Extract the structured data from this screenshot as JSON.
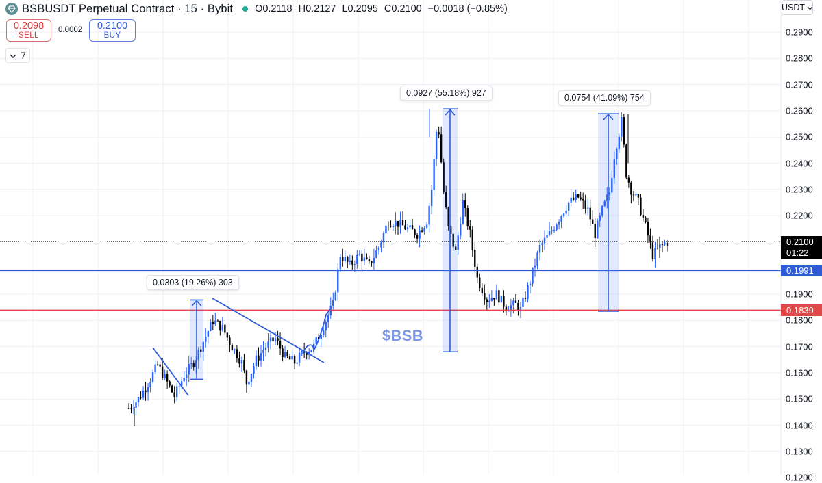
{
  "header": {
    "title": "BSBUSDT Perpetual Contract · 15 · Bybit",
    "open": "O0.2118",
    "high": "H0.2127",
    "low": "L0.2095",
    "close": "C0.2100",
    "change": "−0.0018 (−0.85%)"
  },
  "trade": {
    "sell_price": "0.2098",
    "sell_label": "SELL",
    "spread": "0.0002",
    "buy_price": "0.2100",
    "buy_label": "BUY"
  },
  "indicators_collapse": {
    "count": "7"
  },
  "axis": {
    "currency": "USDT"
  },
  "price_labels": {
    "current_price": "0.2100",
    "countdown": "01:22",
    "blue_level": "0.1991",
    "red_level": "0.1839"
  },
  "measurements": [
    {
      "text": "0.0303 (19.26%) 303"
    },
    {
      "text": "0.0927 (55.18%) 927"
    },
    {
      "text": "0.0754 (41.09%) 754"
    }
  ],
  "annotation": {
    "text": "$BSB"
  },
  "colors": {
    "up": "#2962ff",
    "down": "#000000",
    "blue_line": "#2f5bd6",
    "red_line": "#e04848",
    "price_label_bg": "#000000",
    "drawing": "#2f5bd6"
  },
  "chart_data": {
    "type": "candlestick",
    "symbol": "BSBUSDT",
    "timeframe": "15",
    "y_ticks": [
      "0.2900",
      "0.2800",
      "0.2700",
      "0.2600",
      "0.2500",
      "0.2400",
      "0.2300",
      "0.2200",
      "0.1900",
      "0.1800",
      "0.1700",
      "0.1600",
      "0.1500",
      "0.1400",
      "0.1300",
      "0.1200"
    ],
    "ylim": [
      0.1185,
      0.2975
    ],
    "horizontal_levels": [
      {
        "value": 0.1991,
        "color": "blue"
      },
      {
        "value": 0.1839,
        "color": "red"
      }
    ],
    "current_price": 0.21,
    "price_anchors": [
      [
        0,
        0.1465
      ],
      [
        4,
        0.15
      ],
      [
        8,
        0.156
      ],
      [
        12,
        0.163
      ],
      [
        15,
        0.158
      ],
      [
        19,
        0.151
      ],
      [
        23,
        0.159
      ],
      [
        27,
        0.164
      ],
      [
        31,
        0.172
      ],
      [
        35,
        0.18
      ],
      [
        39,
        0.177
      ],
      [
        43,
        0.17
      ],
      [
        47,
        0.164
      ],
      [
        49,
        0.156
      ],
      [
        53,
        0.165
      ],
      [
        57,
        0.17
      ],
      [
        61,
        0.173
      ],
      [
        65,
        0.166
      ],
      [
        69,
        0.164
      ],
      [
        73,
        0.168
      ],
      [
        77,
        0.17
      ],
      [
        81,
        0.178
      ],
      [
        85,
        0.186
      ],
      [
        88,
        0.205
      ],
      [
        92,
        0.201
      ],
      [
        96,
        0.205
      ],
      [
        100,
        0.201
      ],
      [
        104,
        0.208
      ],
      [
        108,
        0.218
      ],
      [
        112,
        0.217
      ],
      [
        116,
        0.215
      ],
      [
        120,
        0.213
      ],
      [
        124,
        0.218
      ],
      [
        126,
        0.23
      ],
      [
        128,
        0.252
      ],
      [
        129,
        0.252
      ],
      [
        131,
        0.229
      ],
      [
        133,
        0.215
      ],
      [
        136,
        0.206
      ],
      [
        139,
        0.225
      ],
      [
        142,
        0.213
      ],
      [
        145,
        0.196
      ],
      [
        149,
        0.188
      ],
      [
        153,
        0.19
      ],
      [
        157,
        0.185
      ],
      [
        161,
        0.186
      ],
      [
        163,
        0.184
      ],
      [
        167,
        0.195
      ],
      [
        171,
        0.208
      ],
      [
        175,
        0.213
      ],
      [
        179,
        0.219
      ],
      [
        183,
        0.225
      ],
      [
        187,
        0.227
      ],
      [
        191,
        0.222
      ],
      [
        194,
        0.213
      ],
      [
        197,
        0.222
      ],
      [
        200,
        0.229
      ],
      [
        202,
        0.243
      ],
      [
        205,
        0.256
      ],
      [
        207,
        0.236
      ],
      [
        209,
        0.23
      ],
      [
        212,
        0.225
      ],
      [
        215,
        0.216
      ],
      [
        218,
        0.205
      ],
      [
        221,
        0.208
      ],
      [
        224,
        0.21
      ]
    ],
    "measurements": [
      {
        "from": 0.1575,
        "to": 0.1878,
        "change": "0.0303 (19.26%) 303"
      },
      {
        "from": 0.168,
        "to": 0.2607,
        "change": "0.0927 (55.18%) 927"
      },
      {
        "from": 0.1835,
        "to": 0.2589,
        "change": "0.0754 (41.09%) 754"
      }
    ]
  }
}
